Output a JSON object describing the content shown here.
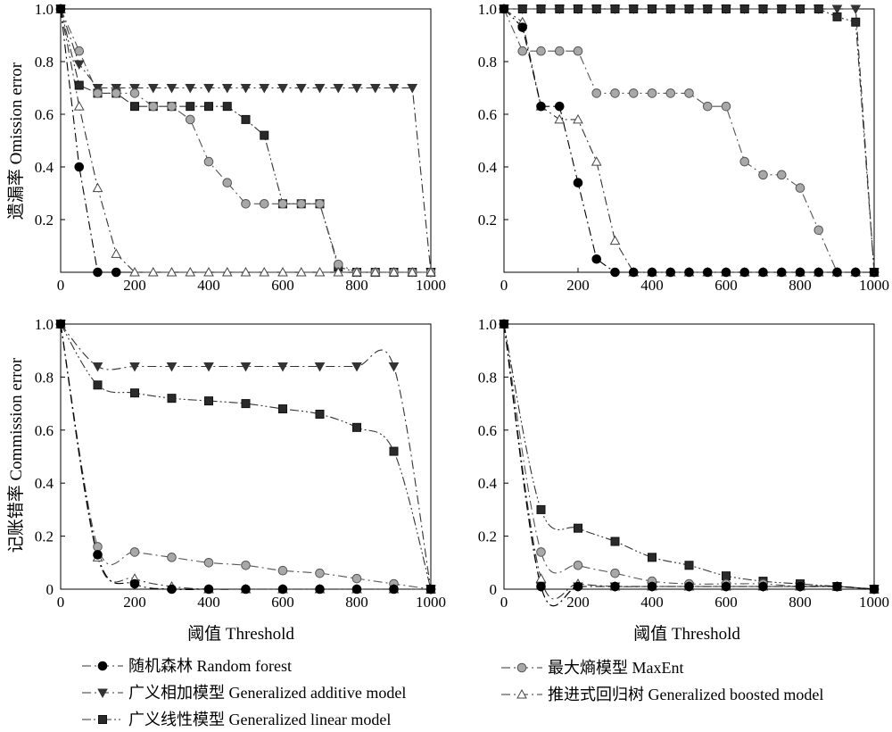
{
  "figure": {
    "xlabel": "阈值 Threshold",
    "ylabel_top": "遗漏率 Omission error",
    "ylabel_bottom": "记账错率 Commission error",
    "x_ticks": [
      "0",
      "200",
      "400",
      "600",
      "800",
      "1000"
    ],
    "y_ticks": [
      "0.2",
      "0.4",
      "0.6",
      "0.8",
      "1.0"
    ],
    "y_tick_zero": "0"
  },
  "legend": [
    {
      "key": "rf",
      "label": "随机森林 Random forest",
      "marker": "circle-filled",
      "dash": "dash-dot",
      "color": "#000000",
      "fill": "#000000"
    },
    {
      "key": "maxent",
      "label": "最大熵模型 MaxEnt",
      "marker": "circle-gray",
      "dash": "dash-dot",
      "color": "#555555",
      "fill": "#a8a8a8"
    },
    {
      "key": "gam",
      "label": "广义相加模型 Generalized additive model",
      "marker": "triangle-down",
      "dash": "dash-dot",
      "color": "#333333",
      "fill": "#333333"
    },
    {
      "key": "gbm",
      "label": "推进式回归树 Generalized boosted model",
      "marker": "triangle-up-open",
      "dash": "dash-dot",
      "color": "#333333",
      "fill": "#ffffff"
    },
    {
      "key": "glm",
      "label": "广义线性模型 Generalized linear model",
      "marker": "square-filled",
      "dash": "dash-dot-dot",
      "color": "#333333",
      "fill": "#2a2a2a"
    }
  ],
  "chart_data": [
    {
      "type": "line",
      "position": "top-left",
      "ylabel": "遗漏率 Omission error",
      "xlim": [
        0,
        1000
      ],
      "ylim": [
        0,
        1
      ],
      "series": [
        {
          "key": "rf",
          "name": "随机森林 Random forest",
          "x": [
            0,
            50,
            100,
            150
          ],
          "y": [
            1.0,
            0.4,
            0.0,
            0.0
          ]
        },
        {
          "key": "maxent",
          "name": "最大熵模型 MaxEnt",
          "x": [
            0,
            50,
            100,
            150,
            200,
            250,
            300,
            350,
            400,
            450,
            500,
            550,
            600,
            650,
            700,
            750,
            800,
            850,
            900,
            950,
            1000
          ],
          "y": [
            1.0,
            0.84,
            0.68,
            0.68,
            0.68,
            0.63,
            0.63,
            0.58,
            0.42,
            0.34,
            0.26,
            0.26,
            0.26,
            0.26,
            0.26,
            0.03,
            0.0,
            0.0,
            0.0,
            0.0,
            0.0
          ]
        },
        {
          "key": "gam",
          "name": "广义相加模型 Generalized additive model",
          "x": [
            0,
            50,
            100,
            150,
            200,
            250,
            300,
            350,
            400,
            450,
            500,
            550,
            600,
            650,
            700,
            750,
            800,
            850,
            900,
            950,
            1000
          ],
          "y": [
            1.0,
            0.79,
            0.7,
            0.7,
            0.7,
            0.7,
            0.7,
            0.7,
            0.7,
            0.7,
            0.7,
            0.7,
            0.7,
            0.7,
            0.7,
            0.7,
            0.7,
            0.7,
            0.7,
            0.7,
            0.0
          ]
        },
        {
          "key": "gbm",
          "name": "推进式回归树 Generalized boosted model",
          "x": [
            0,
            50,
            100,
            150,
            200,
            250,
            300,
            350,
            400,
            450,
            500,
            550,
            600,
            650,
            700,
            750,
            800,
            850,
            900,
            950,
            1000
          ],
          "y": [
            1.0,
            0.63,
            0.32,
            0.07,
            0.0,
            0.0,
            0.0,
            0.0,
            0.0,
            0.0,
            0.0,
            0.0,
            0.0,
            0.0,
            0.0,
            0.0,
            0.0,
            0.0,
            0.0,
            0.0,
            0.0
          ]
        },
        {
          "key": "glm",
          "name": "广义线性模型 Generalized linear model",
          "x": [
            0,
            50,
            100,
            150,
            200,
            250,
            300,
            350,
            400,
            450,
            500,
            550,
            600,
            650,
            700,
            750,
            800,
            850,
            900,
            950,
            1000
          ],
          "y": [
            1.0,
            0.71,
            0.68,
            0.68,
            0.63,
            0.63,
            0.63,
            0.63,
            0.63,
            0.63,
            0.58,
            0.52,
            0.26,
            0.26,
            0.26,
            0.02,
            0.0,
            0.0,
            0.0,
            0.0,
            0.0
          ]
        }
      ]
    },
    {
      "type": "line",
      "position": "top-right",
      "xlim": [
        0,
        1000
      ],
      "ylim": [
        0,
        1
      ],
      "series": [
        {
          "key": "rf",
          "name": "随机森林 Random forest",
          "x": [
            0,
            50,
            100,
            150,
            200,
            250,
            300,
            350,
            400,
            450,
            500,
            550,
            600,
            650,
            700,
            750,
            800,
            850,
            900,
            950,
            1000
          ],
          "y": [
            1.0,
            0.93,
            0.63,
            0.63,
            0.34,
            0.05,
            0.0,
            0.0,
            0.0,
            0.0,
            0.0,
            0.0,
            0.0,
            0.0,
            0.0,
            0.0,
            0.0,
            0.0,
            0.0,
            0.0,
            0.0
          ]
        },
        {
          "key": "maxent",
          "name": "最大熵模型 MaxEnt",
          "x": [
            0,
            50,
            100,
            150,
            200,
            250,
            300,
            350,
            400,
            450,
            500,
            550,
            600,
            650,
            700,
            750,
            800,
            850,
            900,
            950,
            1000
          ],
          "y": [
            1.0,
            0.84,
            0.84,
            0.84,
            0.84,
            0.68,
            0.68,
            0.68,
            0.68,
            0.68,
            0.68,
            0.63,
            0.63,
            0.42,
            0.37,
            0.37,
            0.32,
            0.16,
            0.0,
            0.0,
            0.0
          ]
        },
        {
          "key": "gam",
          "name": "广义相加模型 Generalized additive model",
          "x": [
            0,
            50,
            100,
            150,
            200,
            250,
            300,
            350,
            400,
            450,
            500,
            550,
            600,
            650,
            700,
            750,
            800,
            850,
            900,
            950,
            1000
          ],
          "y": [
            1.0,
            1.0,
            1.0,
            1.0,
            1.0,
            1.0,
            1.0,
            1.0,
            1.0,
            1.0,
            1.0,
            1.0,
            1.0,
            1.0,
            1.0,
            1.0,
            1.0,
            1.0,
            1.0,
            1.0,
            0.0
          ]
        },
        {
          "key": "gbm",
          "name": "推进式回归树 Generalized boosted model",
          "x": [
            0,
            50,
            100,
            150,
            200,
            250,
            300,
            350,
            400,
            450,
            500,
            550,
            600,
            650,
            700,
            750,
            800,
            850,
            900,
            950,
            1000
          ],
          "y": [
            1.0,
            0.95,
            0.63,
            0.58,
            0.58,
            0.42,
            0.12,
            0.0,
            0.0,
            0.0,
            0.0,
            0.0,
            0.0,
            0.0,
            0.0,
            0.0,
            0.0,
            0.0,
            0.0,
            0.0,
            0.0
          ]
        },
        {
          "key": "glm",
          "name": "广义线性模型 Generalized linear model",
          "x": [
            0,
            50,
            100,
            150,
            200,
            250,
            300,
            350,
            400,
            450,
            500,
            550,
            600,
            650,
            700,
            750,
            800,
            850,
            900,
            950,
            1000
          ],
          "y": [
            1.0,
            1.0,
            1.0,
            1.0,
            1.0,
            1.0,
            1.0,
            1.0,
            1.0,
            1.0,
            1.0,
            1.0,
            1.0,
            1.0,
            1.0,
            1.0,
            1.0,
            1.0,
            0.97,
            0.95,
            0.0
          ]
        }
      ]
    },
    {
      "type": "line",
      "position": "bottom-left",
      "xlabel": "阈值 Threshold",
      "ylabel": "记账错率 Commission error",
      "xlim": [
        0,
        1000
      ],
      "ylim": [
        0,
        1
      ],
      "series": [
        {
          "key": "rf",
          "name": "随机森林 Random forest",
          "x": [
            0,
            100,
            200,
            300,
            400,
            500,
            600,
            700,
            800,
            900,
            1000
          ],
          "y": [
            1.0,
            0.13,
            0.02,
            0.0,
            0.0,
            0.0,
            0.0,
            0.0,
            0.0,
            0.0,
            0.0
          ]
        },
        {
          "key": "maxent",
          "name": "最大熵模型 MaxEnt",
          "x": [
            0,
            100,
            200,
            300,
            400,
            500,
            600,
            700,
            800,
            900,
            1000
          ],
          "y": [
            1.0,
            0.16,
            0.14,
            0.12,
            0.1,
            0.09,
            0.07,
            0.06,
            0.04,
            0.02,
            0.0
          ]
        },
        {
          "key": "gam",
          "name": "广义相加模型 Generalized additive model",
          "x": [
            0,
            100,
            200,
            300,
            400,
            500,
            600,
            700,
            800,
            900,
            1000
          ],
          "y": [
            1.0,
            0.84,
            0.84,
            0.84,
            0.84,
            0.84,
            0.84,
            0.84,
            0.84,
            0.84,
            0.0
          ]
        },
        {
          "key": "gbm",
          "name": "推进式回归树 Generalized boosted model",
          "x": [
            0,
            100,
            200,
            300,
            400,
            500,
            600,
            700,
            800,
            900,
            1000
          ],
          "y": [
            1.0,
            0.12,
            0.04,
            0.01,
            0.0,
            0.0,
            0.0,
            0.0,
            0.0,
            0.0,
            0.0
          ]
        },
        {
          "key": "glm",
          "name": "广义线性模型 Generalized linear model",
          "x": [
            0,
            100,
            200,
            300,
            400,
            500,
            600,
            700,
            800,
            900,
            1000
          ],
          "y": [
            1.0,
            0.77,
            0.74,
            0.72,
            0.71,
            0.7,
            0.68,
            0.66,
            0.61,
            0.52,
            0.0
          ]
        }
      ]
    },
    {
      "type": "line",
      "position": "bottom-right",
      "xlabel": "阈值 Threshold",
      "xlim": [
        0,
        1000
      ],
      "ylim": [
        0,
        1
      ],
      "series": [
        {
          "key": "rf",
          "name": "随机森林 Random forest",
          "x": [
            0,
            100,
            200,
            300,
            400,
            500,
            600,
            700,
            800,
            900,
            1000
          ],
          "y": [
            1.0,
            0.01,
            0.01,
            0.01,
            0.01,
            0.01,
            0.01,
            0.01,
            0.01,
            0.01,
            0.0
          ]
        },
        {
          "key": "maxent",
          "name": "最大熵模型 MaxEnt",
          "x": [
            0,
            100,
            200,
            300,
            400,
            500,
            600,
            700,
            800,
            900,
            1000
          ],
          "y": [
            1.0,
            0.14,
            0.09,
            0.06,
            0.03,
            0.02,
            0.02,
            0.02,
            0.01,
            0.01,
            0.0
          ]
        },
        {
          "key": "gam",
          "name": "广义相加模型 Generalized additive model",
          "x": [
            0,
            100,
            200,
            300,
            400,
            500,
            600,
            700,
            800,
            900,
            1000
          ],
          "y": [
            1.0,
            0.01,
            0.01,
            0.01,
            0.01,
            0.01,
            0.01,
            0.01,
            0.01,
            0.01,
            0.0
          ]
        },
        {
          "key": "gbm",
          "name": "推进式回归树 Generalized boosted model",
          "x": [
            0,
            100,
            200,
            300,
            400,
            500,
            600,
            700,
            800,
            900,
            1000
          ],
          "y": [
            1.0,
            0.04,
            0.02,
            0.01,
            0.01,
            0.01,
            0.01,
            0.01,
            0.01,
            0.01,
            0.0
          ]
        },
        {
          "key": "glm",
          "name": "广义线性模型 Generalized linear model",
          "x": [
            0,
            100,
            200,
            300,
            400,
            500,
            600,
            700,
            800,
            900,
            1000
          ],
          "y": [
            1.0,
            0.3,
            0.23,
            0.18,
            0.12,
            0.09,
            0.05,
            0.03,
            0.02,
            0.01,
            0.0
          ]
        }
      ]
    }
  ]
}
